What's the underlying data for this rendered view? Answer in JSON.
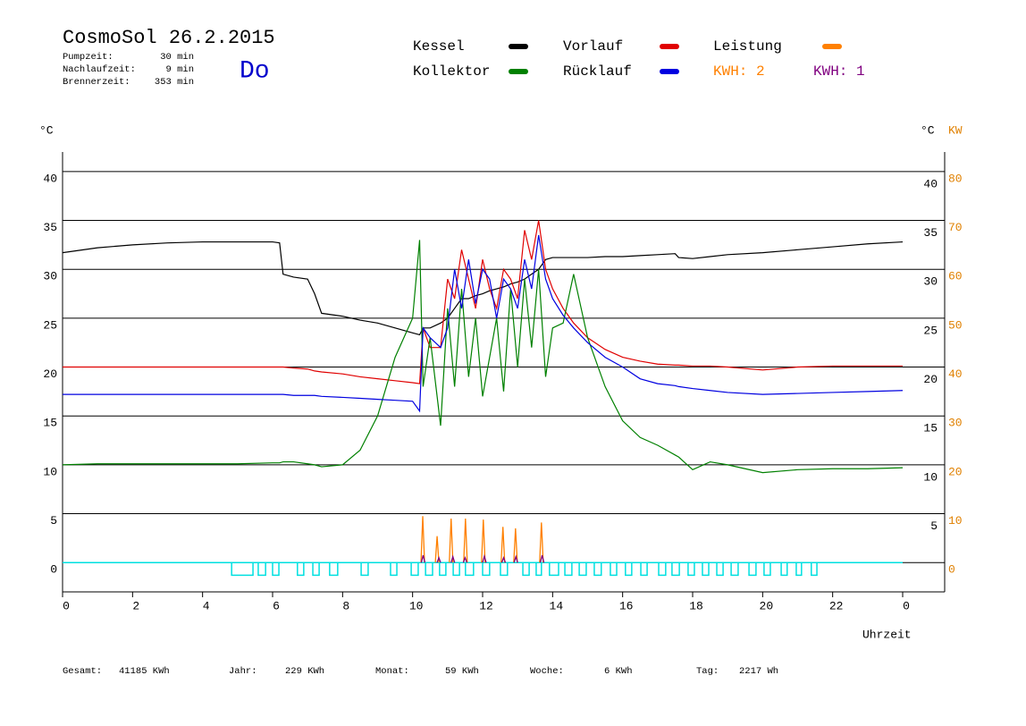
{
  "chart_data": {
    "type": "line",
    "title": "CosmoSol 26.2.2015",
    "info": [
      {
        "label": "Pumpzeit:",
        "value": "30 min"
      },
      {
        "label": "Nachlaufzeit:",
        "value": "9 min"
      },
      {
        "label": "Brennerzeit:",
        "value": "353 min"
      }
    ],
    "weekday": "Do",
    "y_label": "°C",
    "y2_label_left": "°C",
    "y2_label": "KW",
    "x_label": "Uhrzeit",
    "xlim": [
      0,
      25.2
    ],
    "ylim": [
      -3,
      42
    ],
    "y2lim": [
      -6,
      84
    ],
    "xticks": [
      0,
      2,
      4,
      6,
      8,
      10,
      12,
      14,
      16,
      18,
      20,
      22,
      {
        "value": 24,
        "label": "0"
      }
    ],
    "yticks": [
      0,
      5,
      10,
      15,
      20,
      25,
      30,
      35,
      40
    ],
    "right_yticks": [
      5,
      10,
      15,
      20,
      25,
      30,
      35,
      40
    ],
    "y2ticks": [
      0,
      10,
      20,
      30,
      40,
      50,
      60,
      70,
      80
    ],
    "grid": true,
    "x": [
      0,
      1,
      2,
      3,
      4,
      5,
      6,
      6.2,
      6.3,
      6.6,
      7,
      7.2,
      7.4,
      8,
      8.5,
      9,
      9.5,
      10,
      10.2,
      10.3,
      10.5,
      10.8,
      11,
      11.2,
      11.4,
      11.6,
      11.8,
      12,
      12.2,
      12.4,
      12.6,
      12.8,
      13,
      13.2,
      13.4,
      13.6,
      13.8,
      14,
      14.3,
      14.6,
      15,
      15.5,
      16,
      16.5,
      17,
      17.5,
      17.6,
      18,
      18.5,
      19,
      20,
      21,
      22,
      23,
      24
    ],
    "series": [
      {
        "name": "Kessel",
        "color": "#000000",
        "values": [
          31.7,
          32.2,
          32.5,
          32.7,
          32.8,
          32.8,
          32.8,
          32.7,
          29.5,
          29.2,
          29,
          27.5,
          25.5,
          25.2,
          24.8,
          24.5,
          24,
          23.5,
          23.3,
          24,
          24,
          24.5,
          25,
          26,
          27,
          27,
          27.3,
          27.5,
          27.8,
          28,
          28.2,
          28.5,
          28.7,
          29,
          29.5,
          30,
          31,
          31.2,
          31.2,
          31.2,
          31.2,
          31.3,
          31.3,
          31.4,
          31.5,
          31.6,
          31.2,
          31.1,
          31.3,
          31.5,
          31.7,
          32,
          32.3,
          32.6,
          32.8
        ]
      },
      {
        "name": "Vorlauf",
        "color": "#e00000",
        "values": [
          20,
          20,
          20,
          20,
          20,
          20,
          20,
          20,
          20,
          19.9,
          19.8,
          19.6,
          19.5,
          19.3,
          19,
          18.8,
          18.6,
          18.4,
          18.3,
          24,
          22,
          22,
          29,
          27,
          32,
          29,
          26,
          31,
          28,
          26,
          30,
          29,
          27,
          34,
          31,
          35,
          30,
          28,
          26,
          24.5,
          23,
          21.8,
          21,
          20.6,
          20.3,
          20.2,
          20.2,
          20.1,
          20.1,
          20,
          19.7,
          20,
          20.1,
          20.1,
          20.1
        ]
      },
      {
        "name": "Kollektor",
        "color": "#008000",
        "values": [
          10,
          10.1,
          10.1,
          10.1,
          10.1,
          10.1,
          10.2,
          10.2,
          10.3,
          10.3,
          10.1,
          10,
          9.8,
          10,
          11.5,
          15,
          21,
          25,
          33,
          18,
          23,
          14,
          26,
          18,
          28,
          19,
          25,
          17,
          21,
          25,
          17.5,
          28,
          20,
          29,
          22,
          30,
          19,
          24,
          24.5,
          29.5,
          23,
          18,
          14.5,
          12.8,
          12,
          11,
          10.8,
          9.5,
          10.3,
          10,
          9.2,
          9.5,
          9.6,
          9.6,
          9.7
        ]
      },
      {
        "name": "Rücklauf",
        "color": "#0000e0",
        "values": [
          17.2,
          17.2,
          17.2,
          17.2,
          17.2,
          17.2,
          17.2,
          17.2,
          17.2,
          17.1,
          17.1,
          17.1,
          17,
          16.9,
          16.8,
          16.7,
          16.6,
          16.5,
          15.5,
          24,
          23,
          22,
          24,
          30,
          26,
          31,
          26.5,
          30,
          29,
          25,
          29,
          28,
          26,
          31,
          28,
          33.5,
          29,
          27,
          25.3,
          24,
          22.5,
          21,
          20,
          18.8,
          18.3,
          18.1,
          18,
          17.8,
          17.6,
          17.4,
          17.2,
          17.3,
          17.4,
          17.5,
          17.6
        ]
      }
    ],
    "spikes": [
      {
        "name": "Leistung",
        "color": "#ff8000",
        "axis": "y2",
        "x": [
          10.29,
          10.7,
          11.1,
          11.51,
          12.02,
          12.58,
          12.94,
          13.68
        ],
        "values": [
          9.5,
          5.4,
          9,
          9,
          8.8,
          7.3,
          7,
          8.2
        ]
      },
      {
        "color": "#800080",
        "axis": "y2",
        "x": [
          10.3,
          10.75,
          11.15,
          11.5,
          12.05,
          12.6,
          12.95,
          13.7
        ],
        "values": [
          1.5,
          1,
          1.2,
          1,
          1.3,
          1,
          1.2,
          1.5
        ]
      }
    ],
    "kwh_labels": [
      {
        "text": "KWH: 2",
        "color": "#ff8000"
      },
      {
        "text": "KWH: 1",
        "color": "#800080"
      }
    ],
    "pump": {
      "color": "#00e0e0",
      "depth": -1.3,
      "pulse_start": [
        4.83,
        5.59,
        6.0,
        6.71,
        7.15,
        7.63,
        8.53,
        9.37,
        9.96,
        10.37,
        10.77,
        11.16,
        11.51,
        12.0,
        12.51,
        13.15,
        13.53,
        13.91,
        14.35,
        14.76,
        15.19,
        15.65,
        16.08,
        16.52,
        17.03,
        17.41,
        17.87,
        18.28,
        18.69,
        19.1,
        19.61,
        20.04,
        20.53,
        20.96,
        21.39
      ],
      "pulse_end": [
        5.44,
        5.8,
        6.18,
        6.89,
        7.33,
        7.86,
        8.73,
        9.55,
        10.16,
        10.57,
        10.95,
        11.34,
        11.74,
        12.2,
        12.71,
        13.33,
        13.68,
        14.17,
        14.55,
        14.96,
        15.39,
        15.83,
        16.26,
        16.7,
        17.23,
        17.62,
        18.05,
        18.46,
        18.87,
        19.3,
        19.81,
        20.22,
        20.7,
        21.11,
        21.55
      ]
    },
    "totals": [
      {
        "label": "Gesamt:",
        "value": "41185 KWh"
      },
      {
        "label": "Jahr:",
        "value": "229 KWh"
      },
      {
        "label": "Monat:",
        "value": "59 KWh"
      },
      {
        "label": "Woche:",
        "value": "6 KWh"
      },
      {
        "label": "Tag:",
        "value": "2217 Wh"
      }
    ]
  }
}
